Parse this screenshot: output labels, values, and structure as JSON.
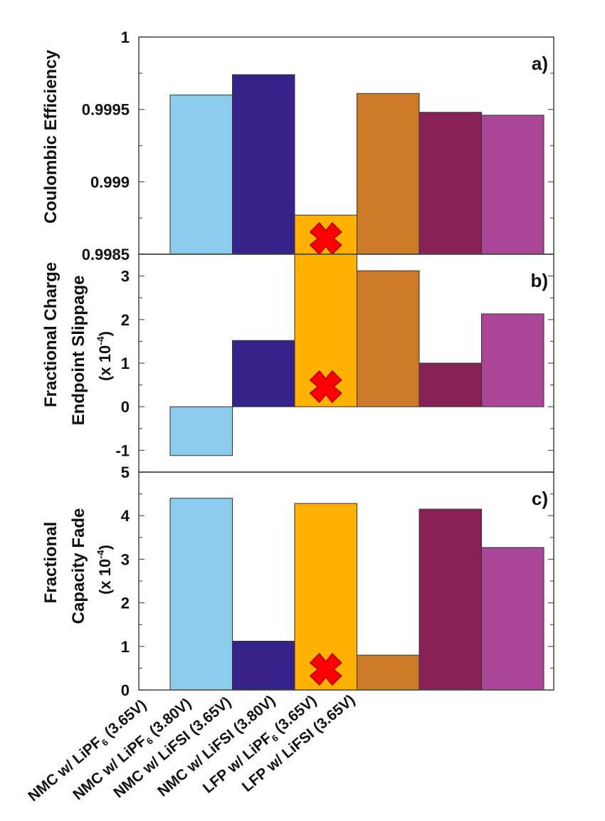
{
  "chart_data": {
    "type": "bar",
    "categories": [
      {
        "pre": "NMC w/ LiPF",
        "sub": "6",
        "post": " (3.65V)"
      },
      {
        "pre": "NMC w/ LiPF",
        "sub": "6",
        "post": " (3.80V)"
      },
      {
        "pre": "NMC w/ LiFSI (3.65V)",
        "sub": "",
        "post": ""
      },
      {
        "pre": "NMC w/ LiFSI (3.80V)",
        "sub": "",
        "post": ""
      },
      {
        "pre": "LFP w/ LiPF",
        "sub": "6",
        "post": " (3.65V)"
      },
      {
        "pre": "LFP w/ LiFSI (3.65V)",
        "sub": "",
        "post": ""
      }
    ],
    "colors": [
      "#8bcbec",
      "#352288",
      "#fdb100",
      "#cc7a28",
      "#852154",
      "#a94697"
    ],
    "failed_marker": {
      "category_index": 2,
      "icon": "red-x-mark",
      "color": "#ff0000"
    },
    "panels": [
      {
        "tag": "a)",
        "ylabel_lines": [
          "Coulombic Efficiency"
        ],
        "ylim": [
          0.9985,
          1
        ],
        "yticks": [
          "0.9985",
          "0.999",
          "0.9995",
          "1"
        ],
        "ytick_values": [
          0.9985,
          0.999,
          0.9995,
          1
        ],
        "values": [
          0.9996,
          0.99974,
          0.99877,
          0.99961,
          0.99948,
          0.99946
        ]
      },
      {
        "tag": "b)",
        "ylabel_lines": [
          "Fractional Charge",
          "Endpoint Slippage",
          "(x 10",
          "-4",
          ")"
        ],
        "ylim": [
          -1.5,
          3.5
        ],
        "yticks": [
          "-1",
          "0",
          "1",
          "2",
          "3"
        ],
        "ytick_values": [
          -1,
          0,
          1,
          2,
          3
        ],
        "values": [
          -1.12,
          1.52,
          3.5,
          3.12,
          1.0,
          2.13
        ]
      },
      {
        "tag": "c)",
        "ylabel_lines": [
          "Fractional",
          "Capacity Fade",
          "(x 10",
          "-4",
          ")"
        ],
        "ylim": [
          0,
          5
        ],
        "yticks": [
          "0",
          "1",
          "2",
          "3",
          "4",
          "5"
        ],
        "ytick_values": [
          0,
          1,
          2,
          3,
          4,
          5
        ],
        "values": [
          4.4,
          1.12,
          4.28,
          0.8,
          4.15,
          3.27
        ]
      }
    ]
  }
}
